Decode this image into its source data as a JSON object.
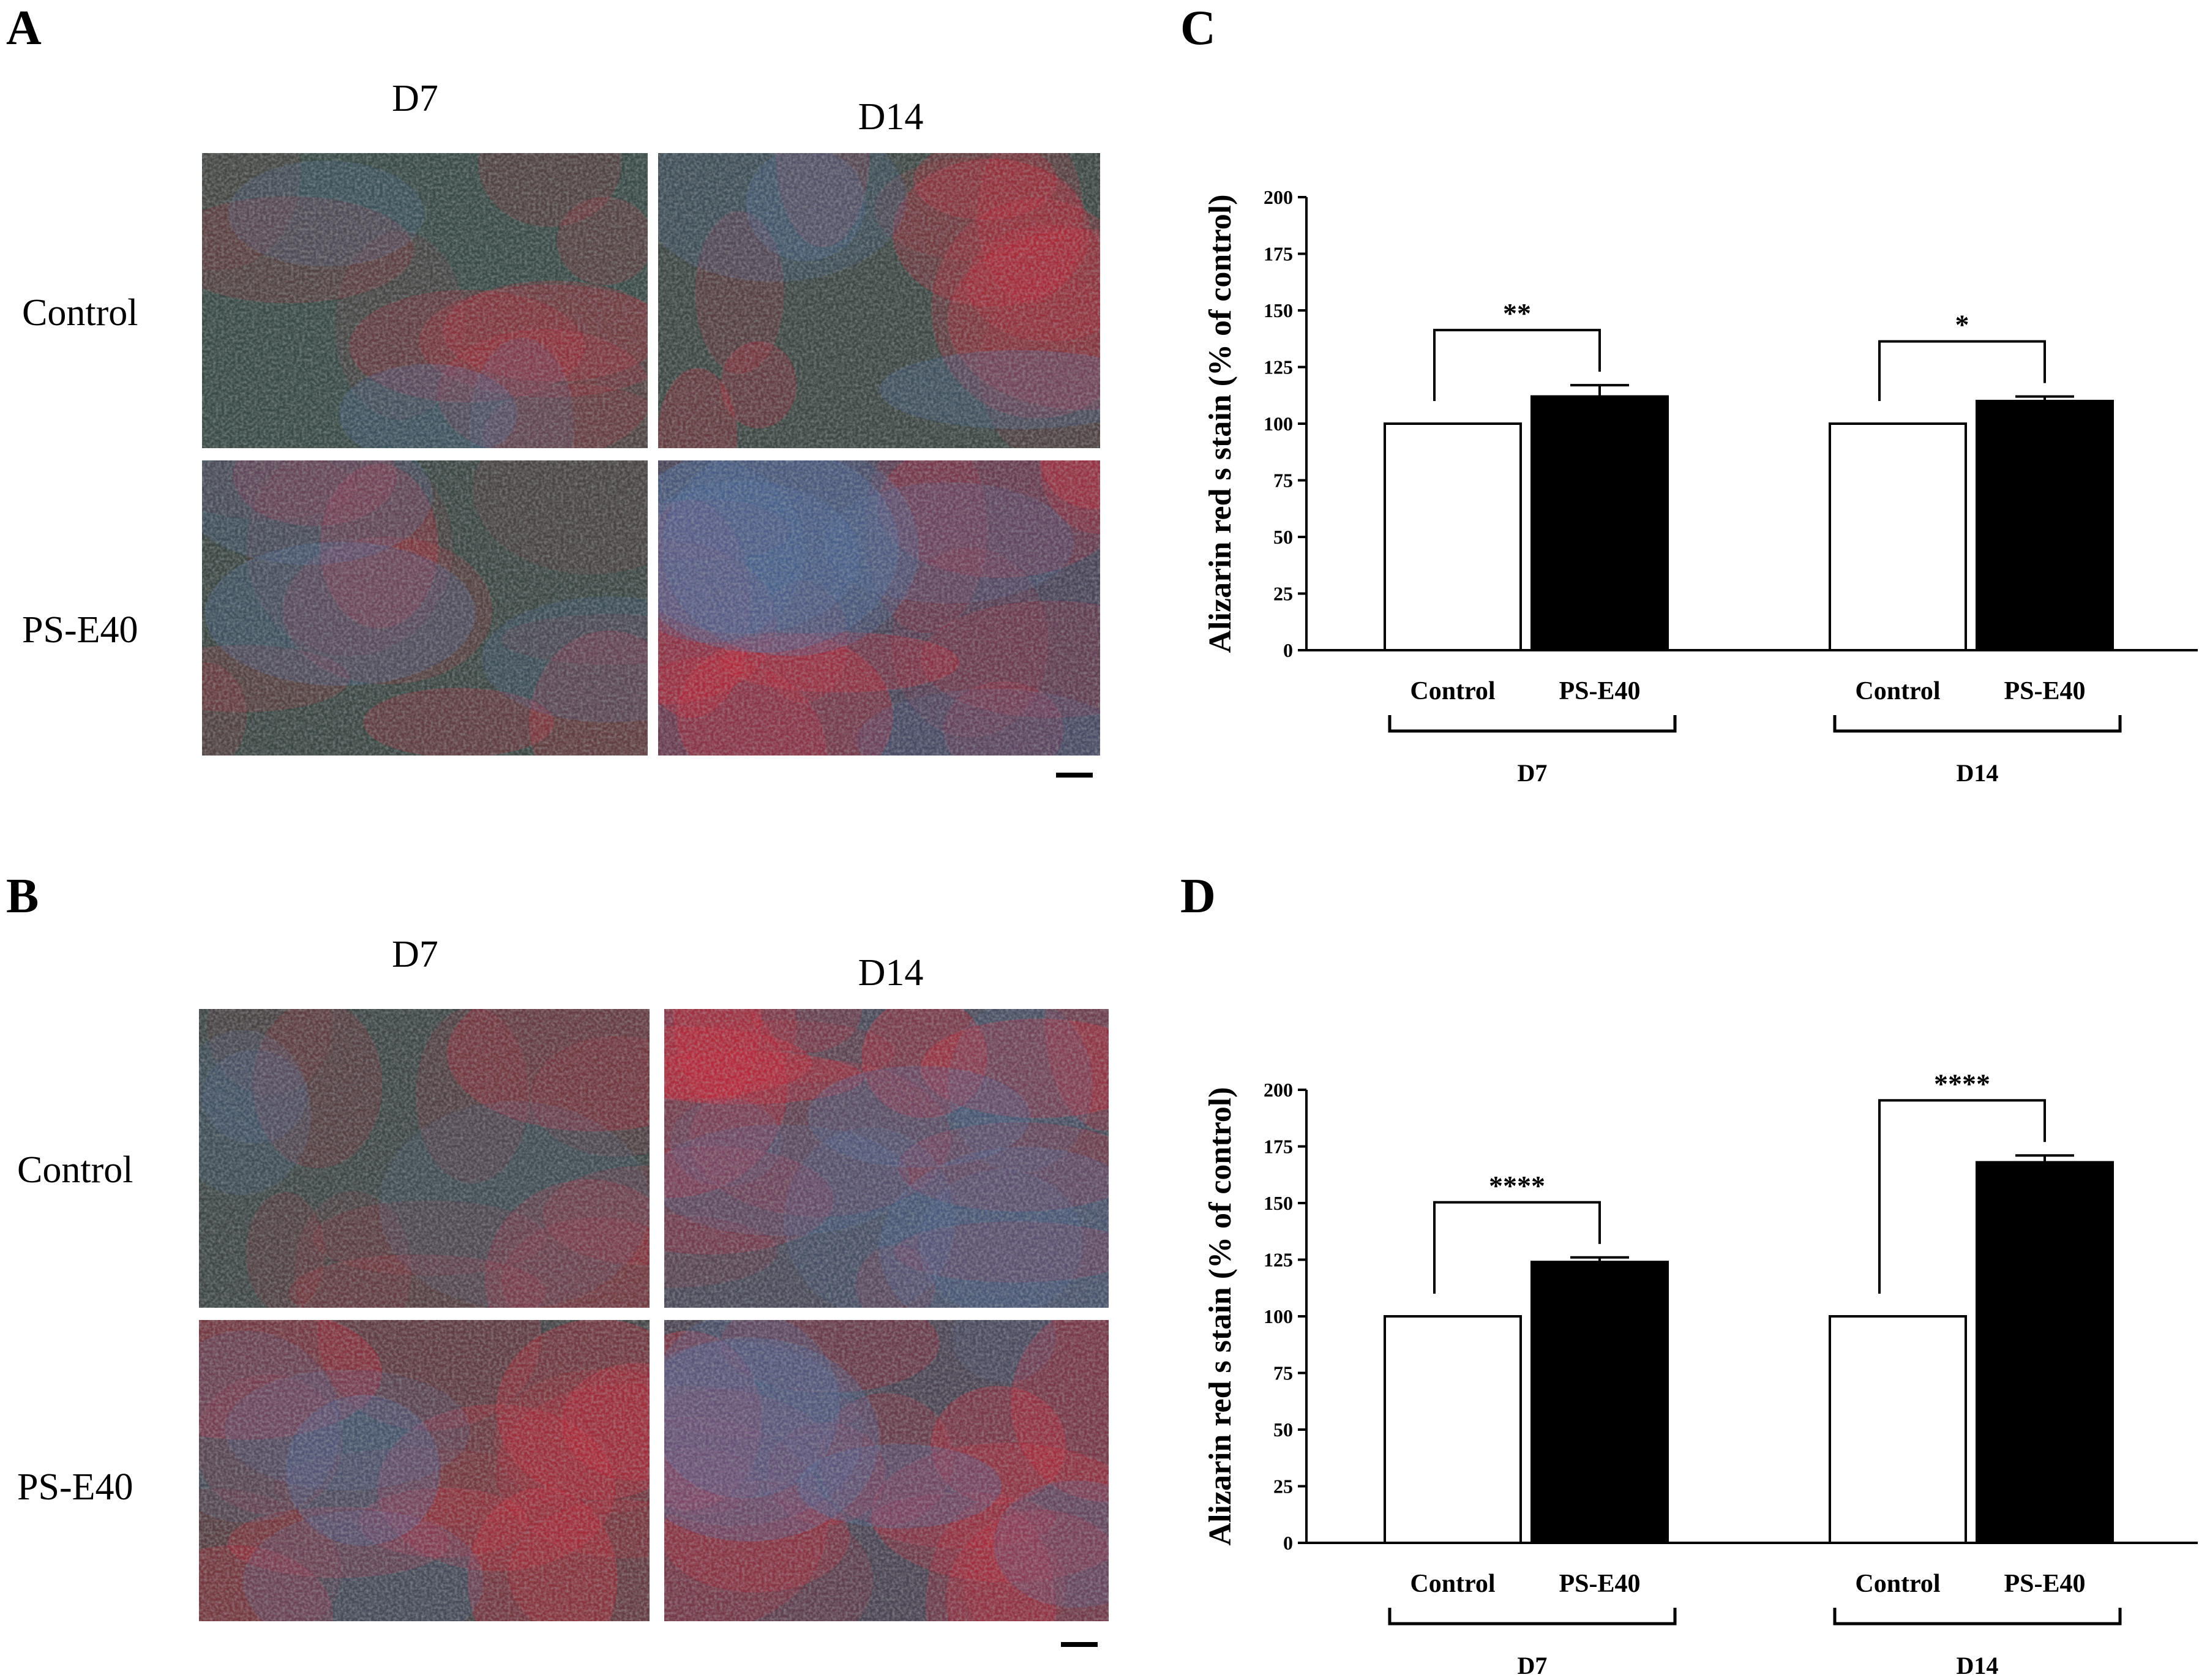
{
  "panels": {
    "A": {
      "letter": "A",
      "columns": [
        "D7",
        "D14"
      ],
      "rows": [
        "Control",
        "PS-E40"
      ],
      "images": [
        {
          "name": "a-control-d7",
          "base": "#3a4a46",
          "red": 0.25,
          "blue": 0.05,
          "seed": 11
        },
        {
          "name": "a-control-d14",
          "base": "#3e4744",
          "red": 0.45,
          "blue": 0.05,
          "seed": 12
        },
        {
          "name": "a-pse40-d7",
          "base": "#3c4744",
          "red": 0.35,
          "blue": 0.05,
          "seed": 13
        },
        {
          "name": "a-pse40-d14",
          "base": "#4a4458",
          "red": 0.55,
          "blue": 0.35,
          "seed": 14
        }
      ]
    },
    "B": {
      "letter": "B",
      "columns": [
        "D7",
        "D14"
      ],
      "rows": [
        "Control",
        "PS-E40"
      ],
      "images": [
        {
          "name": "b-control-d7",
          "base": "#3f4646",
          "red": 0.4,
          "blue": 0.1,
          "seed": 21
        },
        {
          "name": "b-control-d14",
          "base": "#4a4a58",
          "red": 0.7,
          "blue": 0.45,
          "seed": 22
        },
        {
          "name": "b-pse40-d7",
          "base": "#464346",
          "red": 0.65,
          "blue": 0.15,
          "seed": 23
        },
        {
          "name": "b-pse40-d14",
          "base": "#4c4452",
          "red": 0.8,
          "blue": 0.35,
          "seed": 24
        }
      ]
    }
  },
  "chart_data": [
    {
      "panel_letter": "C",
      "type": "bar",
      "ylabel": "Alizarin red s stain (% of control)",
      "ylim": [
        0,
        200
      ],
      "yticks": [
        "0",
        "25",
        "50",
        "75",
        "100",
        "125",
        "150",
        "175",
        "200"
      ],
      "groups": [
        {
          "label": "D7",
          "bars": [
            {
              "category": "Control",
              "value": 100,
              "error": 0,
              "fill": "#ffffff"
            },
            {
              "category": "PS-E40",
              "value": 112,
              "error": 5,
              "fill": "#000000"
            }
          ],
          "significance": "**"
        },
        {
          "label": "D14",
          "bars": [
            {
              "category": "Control",
              "value": 100,
              "error": 0,
              "fill": "#ffffff"
            },
            {
              "category": "PS-E40",
              "value": 110,
              "error": 2,
              "fill": "#000000"
            }
          ],
          "significance": "*"
        }
      ]
    },
    {
      "panel_letter": "D",
      "type": "bar",
      "ylabel": "Alizarin red s stain (% of control)",
      "ylim": [
        0,
        200
      ],
      "yticks": [
        "0",
        "25",
        "50",
        "75",
        "100",
        "125",
        "150",
        "175",
        "200"
      ],
      "groups": [
        {
          "label": "D7",
          "bars": [
            {
              "category": "Control",
              "value": 100,
              "error": 0,
              "fill": "#ffffff"
            },
            {
              "category": "PS-E40",
              "value": 124,
              "error": 2,
              "fill": "#000000"
            }
          ],
          "significance": "****"
        },
        {
          "label": "D14",
          "bars": [
            {
              "category": "Control",
              "value": 100,
              "error": 0,
              "fill": "#ffffff"
            },
            {
              "category": "PS-E40",
              "value": 168,
              "error": 3,
              "fill": "#000000"
            }
          ],
          "significance": "****"
        }
      ]
    }
  ]
}
